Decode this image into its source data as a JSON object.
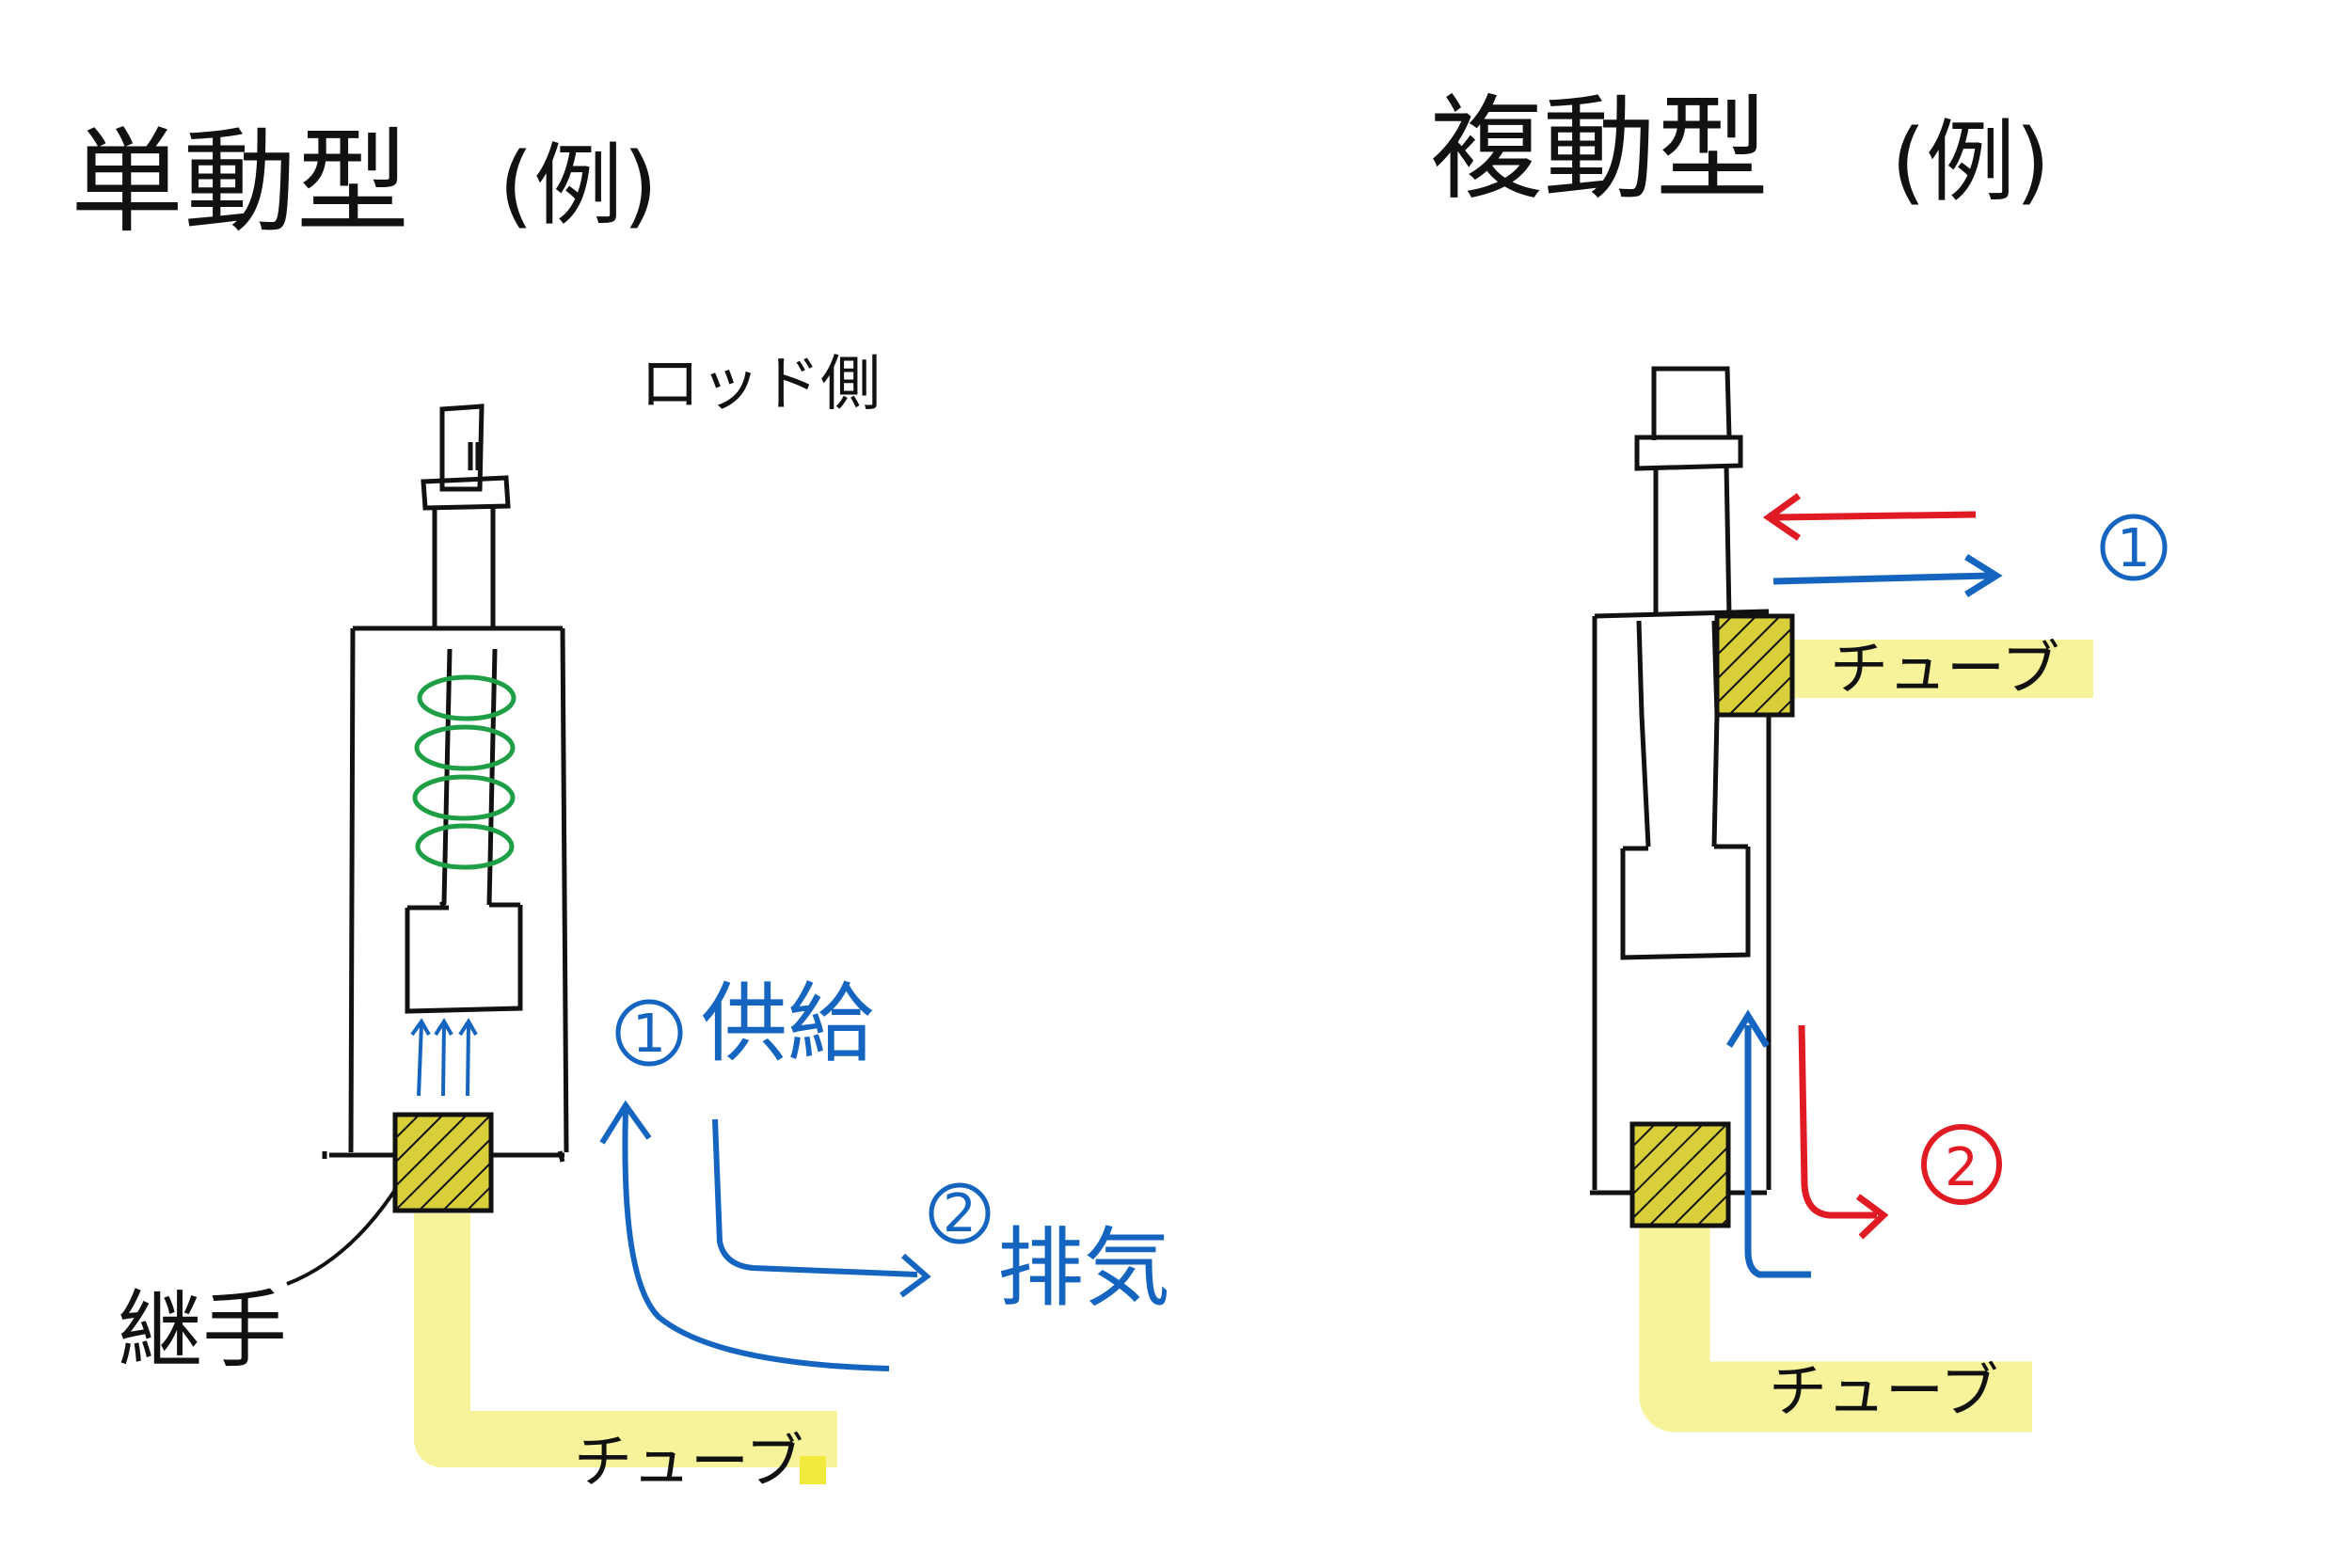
{
  "left": {
    "title": "単動型",
    "paren": "(例)",
    "rod_side": "ロッド側",
    "fitting": "継手",
    "tube": "チューブ",
    "supply_num": "1",
    "supply": "供給",
    "exhaust_num": "2",
    "exhaust": "排気"
  },
  "right": {
    "title": "複動型",
    "paren": "(例)",
    "tube_top": "チューブ",
    "tube_bottom": "チューブ",
    "num1": "1",
    "num2": "2"
  },
  "colors": {
    "ink": "#111111",
    "blue": "#1565c0",
    "red": "#e01b24",
    "green": "#1e9e45",
    "tube_yellow": "#f6f39a",
    "hatch_yellow": "#d9cf3a"
  }
}
